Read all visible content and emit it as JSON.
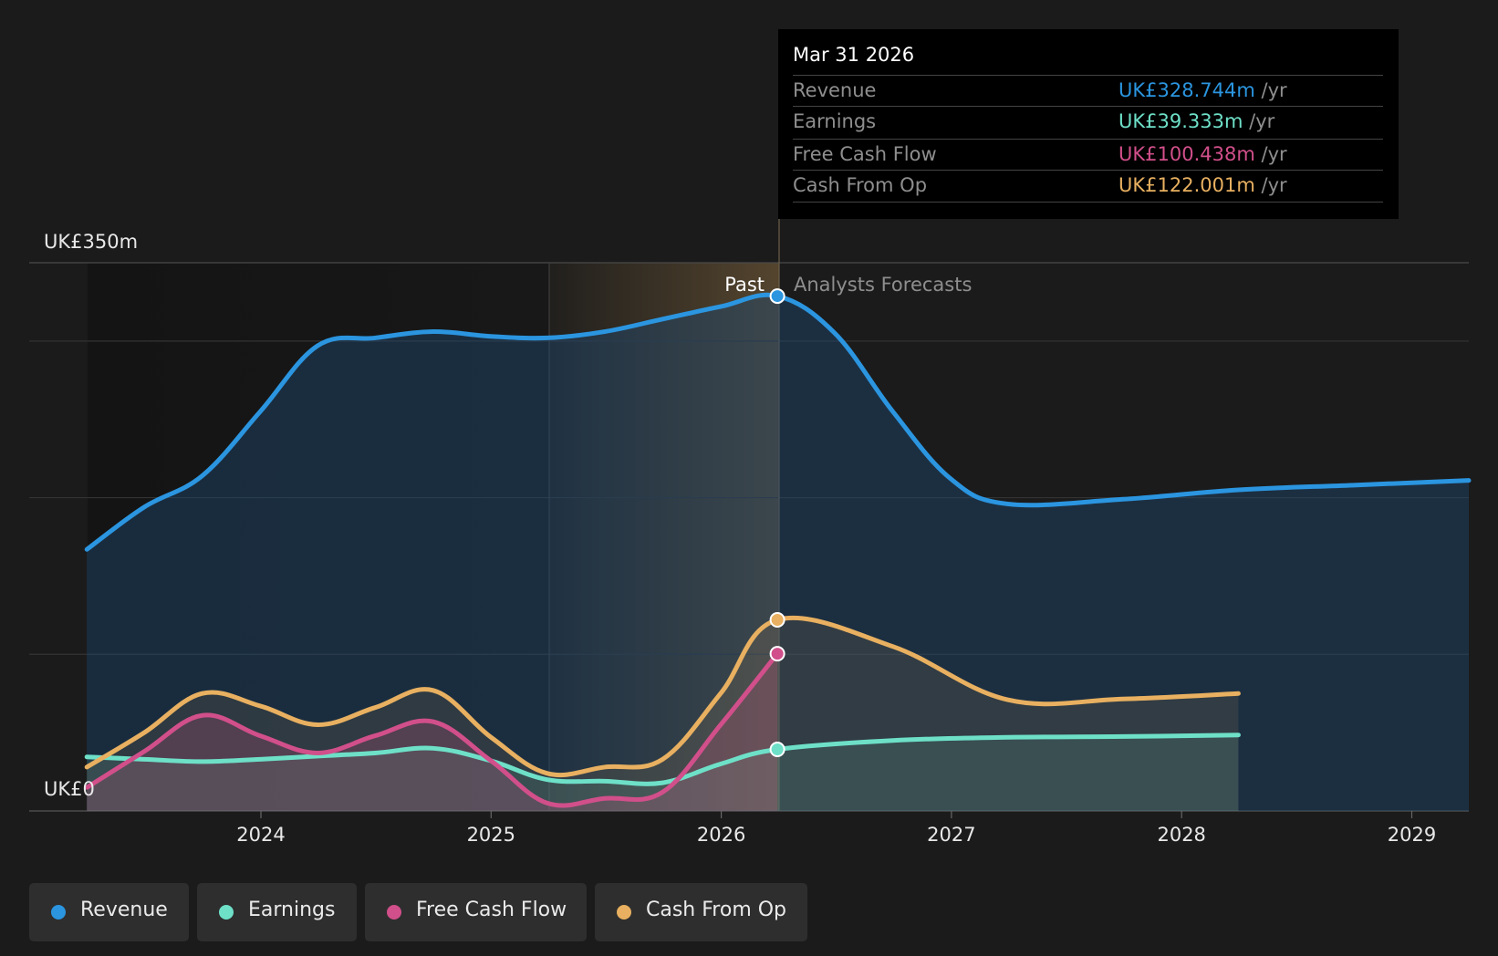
{
  "chart_data": {
    "type": "line",
    "y_axis_labels": [
      "UK£350m",
      "UK£0"
    ],
    "ylim": [
      0,
      350
    ],
    "x_ticks": [
      "2024",
      "2025",
      "2026",
      "2027",
      "2028",
      "2029"
    ],
    "past_label": "Past",
    "forecast_label": "Analysts Forecasts",
    "grid": true,
    "series": [
      {
        "name": "Revenue",
        "color": "#2b95e0",
        "points": [
          [
            "2023-03-31",
            167
          ],
          [
            "2023-06-30",
            194
          ],
          [
            "2023-09-30",
            214
          ],
          [
            "2023-12-31",
            255
          ],
          [
            "2024-03-31",
            297
          ],
          [
            "2024-06-30",
            302
          ],
          [
            "2024-09-30",
            306
          ],
          [
            "2024-12-31",
            303
          ],
          [
            "2025-03-31",
            302
          ],
          [
            "2025-06-30",
            306
          ],
          [
            "2025-09-30",
            314
          ],
          [
            "2025-12-31",
            322
          ],
          [
            "2026-03-31",
            328.7
          ],
          [
            "2026-06-30",
            305
          ],
          [
            "2026-09-30",
            255
          ],
          [
            "2026-12-31",
            212
          ],
          [
            "2027-03-31",
            196
          ],
          [
            "2027-09-30",
            199
          ],
          [
            "2028-03-31",
            205
          ],
          [
            "2028-09-30",
            208
          ],
          [
            "2029-03-31",
            211
          ]
        ]
      },
      {
        "name": "Earnings",
        "color": "#6ee0c8",
        "points": [
          [
            "2023-03-31",
            34.5
          ],
          [
            "2023-06-30",
            33
          ],
          [
            "2023-09-30",
            31.5
          ],
          [
            "2023-12-31",
            33
          ],
          [
            "2024-03-31",
            35
          ],
          [
            "2024-06-30",
            37
          ],
          [
            "2024-09-30",
            40
          ],
          [
            "2024-12-31",
            32
          ],
          [
            "2025-03-31",
            20
          ],
          [
            "2025-06-30",
            19
          ],
          [
            "2025-09-30",
            18
          ],
          [
            "2025-12-31",
            30
          ],
          [
            "2026-03-31",
            39.3
          ],
          [
            "2026-09-30",
            45
          ],
          [
            "2027-03-31",
            47
          ],
          [
            "2027-09-30",
            47.5
          ],
          [
            "2028-03-31",
            48.5
          ]
        ]
      },
      {
        "name": "Free Cash Flow",
        "color": "#d14f8a",
        "points": [
          [
            "2023-03-31",
            15
          ],
          [
            "2023-06-30",
            38
          ],
          [
            "2023-09-30",
            61
          ],
          [
            "2023-12-31",
            48
          ],
          [
            "2024-03-31",
            37
          ],
          [
            "2024-06-30",
            48
          ],
          [
            "2024-09-30",
            57
          ],
          [
            "2024-12-31",
            32
          ],
          [
            "2025-03-31",
            5
          ],
          [
            "2025-06-30",
            8
          ],
          [
            "2025-09-30",
            12
          ],
          [
            "2025-12-31",
            55
          ],
          [
            "2026-03-31",
            100.4
          ]
        ]
      },
      {
        "name": "Cash From Op",
        "color": "#e8b060",
        "points": [
          [
            "2023-03-31",
            28
          ],
          [
            "2023-06-30",
            50
          ],
          [
            "2023-09-30",
            75
          ],
          [
            "2023-12-31",
            67
          ],
          [
            "2024-03-31",
            55
          ],
          [
            "2024-06-30",
            66
          ],
          [
            "2024-09-30",
            77
          ],
          [
            "2024-12-31",
            47
          ],
          [
            "2025-03-31",
            24
          ],
          [
            "2025-06-30",
            28
          ],
          [
            "2025-09-30",
            33
          ],
          [
            "2025-12-31",
            75
          ],
          [
            "2026-03-31",
            122
          ],
          [
            "2026-09-30",
            105
          ],
          [
            "2027-03-31",
            71
          ],
          [
            "2027-09-30",
            71.5
          ],
          [
            "2028-03-31",
            75
          ]
        ]
      }
    ]
  },
  "tooltip": {
    "date": "Mar 31 2026",
    "rows": [
      {
        "label": "Revenue",
        "value": "UK£328.744m",
        "unit": "/yr",
        "color": "#2b95e0"
      },
      {
        "label": "Earnings",
        "value": "UK£39.333m",
        "unit": "/yr",
        "color": "#6ee0c8"
      },
      {
        "label": "Free Cash Flow",
        "value": "UK£100.438m",
        "unit": "/yr",
        "color": "#d14f8a"
      },
      {
        "label": "Cash From Op",
        "value": "UK£122.001m",
        "unit": "/yr",
        "color": "#e8b060"
      }
    ]
  },
  "legend": [
    {
      "label": "Revenue",
      "color": "#2b95e0"
    },
    {
      "label": "Earnings",
      "color": "#6ee0c8"
    },
    {
      "label": "Free Cash Flow",
      "color": "#d14f8a"
    },
    {
      "label": "Cash From Op",
      "color": "#e8b060"
    }
  ]
}
